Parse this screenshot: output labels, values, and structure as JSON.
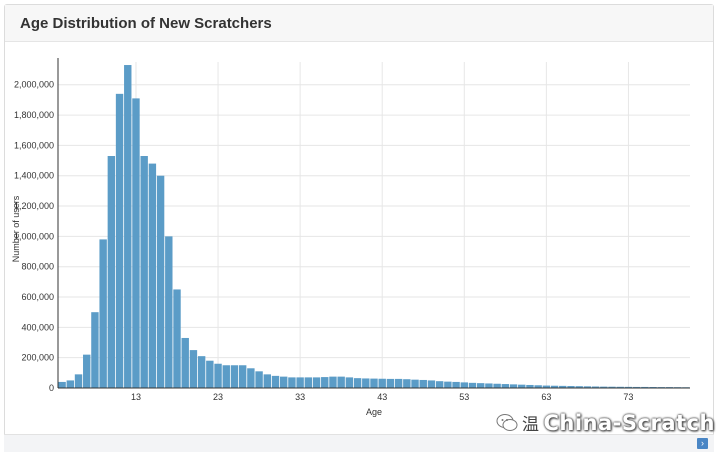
{
  "chart_data": {
    "type": "bar",
    "title": "Age Distribution of New Scratchers",
    "xlabel": "Age",
    "ylabel": "Number of users",
    "x_start": 4,
    "x_ticks": [
      "13",
      "23",
      "33",
      "43",
      "53",
      "63",
      "73"
    ],
    "y_ticks": [
      "0",
      "200,000",
      "400,000",
      "600,000",
      "800,000",
      "1,000,000",
      "1,200,000",
      "1,400,000",
      "1,600,000",
      "1,800,000",
      "2,000,000"
    ],
    "ylim": [
      0,
      2150000
    ],
    "grid": true,
    "bar_color": "#5b9cc7",
    "values": [
      40000,
      50000,
      90000,
      220000,
      500000,
      980000,
      1530000,
      1940000,
      2130000,
      1910000,
      1530000,
      1480000,
      1400000,
      1000000,
      650000,
      330000,
      250000,
      210000,
      180000,
      160000,
      150000,
      150000,
      150000,
      130000,
      110000,
      90000,
      80000,
      75000,
      70000,
      70000,
      70000,
      70000,
      72000,
      75000,
      75000,
      70000,
      65000,
      63000,
      62000,
      61000,
      60000,
      60000,
      58000,
      55000,
      53000,
      50000,
      45000,
      42000,
      40000,
      37000,
      34000,
      32000,
      30000,
      28000,
      26000,
      24000,
      22000,
      20000,
      18000,
      16000,
      15000,
      14000,
      13000,
      12000,
      11000,
      10000,
      9000,
      8500,
      8000,
      7500,
      7000,
      7000,
      6500,
      6000,
      6000,
      5500,
      5000
    ]
  },
  "watermark": {
    "text": "China-Scratch",
    "prefix": "温"
  }
}
